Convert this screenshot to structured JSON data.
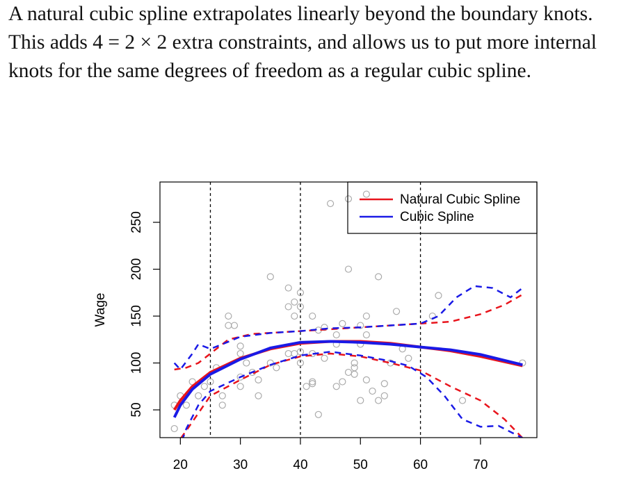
{
  "paragraph": "A natural cubic spline extrapolates linearly beyond the boundary knots. This adds 4 = 2 × 2 extra constraints, and allows us to put more internal knots for the same degrees of freedom as a regular cubic spline.",
  "chart_data": {
    "type": "spline",
    "y_label": "Wage",
    "xlim": [
      16.6,
      79.4
    ],
    "ylim": [
      20.4,
      293
    ],
    "xticks": [
      20,
      30,
      40,
      50,
      60,
      70
    ],
    "yticks": [
      50,
      100,
      150,
      200,
      250
    ],
    "knots": [
      25,
      40,
      60
    ],
    "legend": "top-right",
    "points": {
      "color": "#aaaaaa",
      "x": [
        19,
        19,
        20,
        21,
        22,
        23,
        24,
        25,
        26,
        27,
        27,
        28,
        28,
        29,
        30,
        30,
        30,
        31,
        30,
        32,
        33,
        33,
        35,
        35,
        36,
        38,
        38,
        38,
        39,
        39,
        39,
        40,
        40,
        40,
        40,
        41,
        42,
        42,
        42,
        42,
        43,
        43,
        44,
        44,
        45,
        46,
        46,
        46,
        47,
        47,
        48,
        48,
        48,
        49,
        49,
        49,
        50,
        50,
        50,
        51,
        51,
        51,
        52,
        53,
        53,
        54,
        54,
        55,
        56,
        57,
        58,
        62,
        63,
        67,
        77,
        51
      ],
      "values": [
        30,
        55,
        65,
        55,
        80,
        65,
        75,
        80,
        95,
        55,
        65,
        150,
        140,
        140,
        85,
        110,
        118,
        100,
        75,
        90,
        82,
        65,
        192,
        100,
        95,
        180,
        160,
        110,
        110,
        165,
        150,
        175,
        160,
        100,
        112,
        75,
        78,
        80,
        150,
        110,
        45,
        135,
        105,
        138,
        270,
        120,
        75,
        130,
        80,
        142,
        200,
        275,
        90,
        100,
        95,
        88,
        60,
        120,
        140,
        130,
        150,
        82,
        70,
        192,
        60,
        78,
        65,
        100,
        155,
        115,
        105,
        150,
        172,
        60,
        100,
        280
      ]
    },
    "series": [
      {
        "name": "Natural Cubic Spline",
        "color": "#e8141c",
        "dash": false,
        "x": [
          19,
          20,
          22,
          25,
          30,
          35,
          40,
          45,
          50,
          55,
          60,
          65,
          70,
          77
        ],
        "values": [
          50,
          60,
          75,
          90,
          105,
          115,
          121,
          123,
          123,
          121,
          117,
          113,
          107,
          97
        ]
      },
      {
        "name": "Cubic Spline",
        "color": "#1a1ae6",
        "dash": false,
        "x": [
          19,
          20,
          22,
          25,
          30,
          35,
          40,
          45,
          50,
          55,
          60,
          65,
          70,
          77
        ],
        "values": [
          42,
          55,
          72,
          88,
          104,
          116,
          122,
          123,
          122,
          120,
          117,
          114,
          109,
          98
        ]
      },
      {
        "color": "#e8141c",
        "dash": true,
        "x": [
          19,
          21,
          23,
          25,
          28,
          32,
          40,
          50,
          60,
          65,
          70,
          74,
          77
        ],
        "values": [
          93,
          95,
          100,
          110,
          125,
          131,
          134,
          138,
          142,
          144,
          152,
          162,
          173
        ]
      },
      {
        "color": "#e8141c",
        "dash": true,
        "x": [
          19,
          21,
          25,
          30,
          35,
          40,
          45,
          50,
          55,
          60,
          65,
          70,
          74,
          77
        ],
        "values": [
          10,
          28,
          65,
          82,
          98,
          107,
          110,
          107,
          100,
          92,
          75,
          60,
          40,
          20
        ]
      },
      {
        "color": "#1a1ae6",
        "dash": true,
        "x": [
          19,
          20,
          22,
          23,
          25,
          27,
          30,
          35,
          40,
          45,
          50,
          55,
          60,
          63,
          66,
          69,
          72,
          75,
          77
        ],
        "values": [
          100,
          93,
          110,
          120,
          115,
          120,
          128,
          132,
          134,
          137,
          138,
          140,
          142,
          150,
          170,
          182,
          180,
          170,
          180
        ]
      },
      {
        "color": "#1a1ae6",
        "dash": true,
        "x": [
          19,
          21,
          23,
          25,
          30,
          35,
          40,
          45,
          50,
          55,
          58,
          61,
          64,
          67,
          70,
          73,
          77
        ],
        "values": [
          -5,
          30,
          55,
          70,
          85,
          98,
          108,
          112,
          108,
          102,
          97,
          85,
          65,
          40,
          32,
          33,
          20
        ]
      }
    ]
  }
}
